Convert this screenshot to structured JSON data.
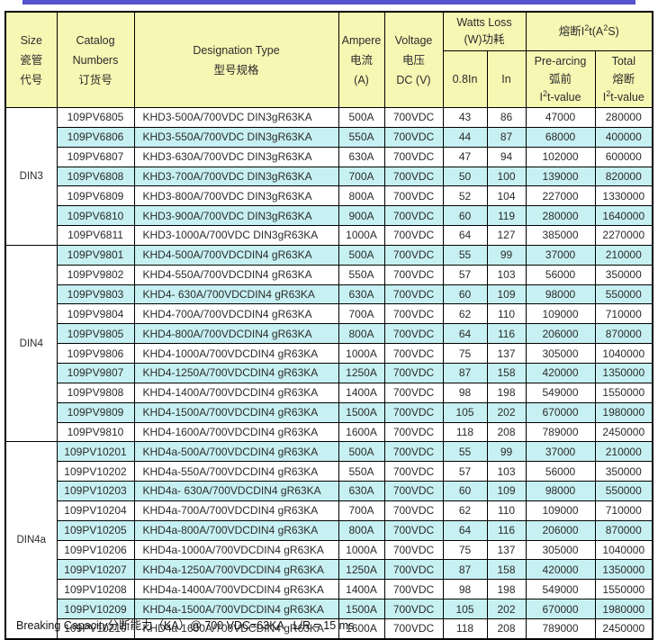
{
  "colors": {
    "top_bar": "#5353cf",
    "header_bg": "#f7f7b4",
    "stripe_bg": "#c7f0f2",
    "border": "#000000"
  },
  "columns": {
    "size": {
      "l1": "Size",
      "l2": "瓷管",
      "l3": "代号"
    },
    "catalog": {
      "l1": "Catalog",
      "l2": "Numbers",
      "l3": "订货号"
    },
    "designation": {
      "l1": "Designation Type",
      "l2": "型号规格"
    },
    "ampere": {
      "l1": "Ampere",
      "l2": "电流",
      "l3": "(A)"
    },
    "voltage": {
      "l1": "Voltage",
      "l2": "电压",
      "l3": "DC (V)"
    },
    "watts": {
      "l1": "Watts Loss",
      "l2": "(W)功耗",
      "sub1": "0.8In",
      "sub2": "In"
    },
    "i2t": {
      "t1": "熔断I",
      "sup1": "2",
      "t2": "t(A",
      "sup2": "2",
      "t3": "S)",
      "prearcing": {
        "l1": "Pre-arcing",
        "l2": "弧前",
        "v1": "I",
        "vsup": "2",
        "v2": "t-value"
      },
      "total": {
        "l1": "Total",
        "l2": "熔断",
        "v1": "I",
        "vsup": "2",
        "v2": "t-value"
      }
    }
  },
  "groups": [
    {
      "label": "DIN3",
      "rows": [
        [
          "109PV6805",
          "KHD3-500A/700VDC DIN3gR63KA",
          "500A",
          "700VDC",
          "43",
          "86",
          "47000",
          "280000"
        ],
        [
          "109PV6806",
          "KHD3-550A/700VDC DIN3gR63KA",
          "550A",
          "700VDC",
          "44",
          "87",
          "68000",
          "400000"
        ],
        [
          "109PV6807",
          "KHD3-630A/700VDC DIN3gR63KA",
          "630A",
          "700VDC",
          "47",
          "94",
          "102000",
          "600000"
        ],
        [
          "109PV6808",
          "KHD3-700A/700VDC DIN3gR63KA",
          "700A",
          "700VDC",
          "50",
          "100",
          "139000",
          "820000"
        ],
        [
          "109PV6809",
          "KHD3-800A/700VDC DIN3gR63KA",
          "800A",
          "700VDC",
          "52",
          "104",
          "227000",
          "1330000"
        ],
        [
          "109PV6810",
          "KHD3-900A/700VDC DIN3gR63KA",
          "900A",
          "700VDC",
          "60",
          "119",
          "280000",
          "1640000"
        ],
        [
          "109PV6811",
          "KHD3-1000A/700VDC DIN3gR63KA",
          "1000A",
          "700VDC",
          "64",
          "127",
          "385000",
          "2270000"
        ]
      ]
    },
    {
      "label": "DIN4",
      "rows": [
        [
          "109PV9801",
          "KHD4-500A/700VDCDIN4 gR63KA",
          "500A",
          "700VDC",
          "55",
          "99",
          "37000",
          "210000"
        ],
        [
          "109PV9802",
          "KHD4-550A/700VDCDIN4 gR63KA",
          "550A",
          "700VDC",
          "57",
          "103",
          "56000",
          "350000"
        ],
        [
          "109PV9803",
          "KHD4- 630A/700VDCDIN4 gR63KA",
          "630A",
          "700VDC",
          "60",
          "109",
          "98000",
          "550000"
        ],
        [
          "109PV9804",
          "KHD4-700A/700VDCDIN4 gR63KA",
          "700A",
          "700VDC",
          "62",
          "110",
          "109000",
          "710000"
        ],
        [
          "109PV9805",
          "KHD4-800A/700VDCDIN4 gR63KA",
          "800A",
          "700VDC",
          "64",
          "116",
          "206000",
          "870000"
        ],
        [
          "109PV9806",
          "KHD4-1000A/700VDCDIN4 gR63KA",
          "1000A",
          "700VDC",
          "75",
          "137",
          "305000",
          "1040000"
        ],
        [
          "109PV9807",
          "KHD4-1250A/700VDCDIN4 gR63KA",
          "1250A",
          "700VDC",
          "87",
          "158",
          "420000",
          "1350000"
        ],
        [
          "109PV9808",
          "KHD4-1400A/700VDCDIN4 gR63KA",
          "1400A",
          "700VDC",
          "98",
          "198",
          "549000",
          "1550000"
        ],
        [
          "109PV9809",
          "KHD4-1500A/700VDCDIN4 gR63KA",
          "1500A",
          "700VDC",
          "105",
          "202",
          "670000",
          "1980000"
        ],
        [
          "109PV9810",
          "KHD4-1600A/700VDCDIN4 gR63KA",
          "1600A",
          "700VDC",
          "118",
          "208",
          "789000",
          "2450000"
        ]
      ]
    },
    {
      "label": "DIN4a",
      "rows": [
        [
          "109PV10201",
          "KHD4a-500A/700VDCDIN4 gR63KA",
          "500A",
          "700VDC",
          "55",
          "99",
          "37000",
          "210000"
        ],
        [
          "109PV10202",
          "KHD4a-550A/700VDCDIN4 gR63KA",
          "550A",
          "700VDC",
          "57",
          "103",
          "56000",
          "350000"
        ],
        [
          "109PV10203",
          "KHD4a- 630A/700VDCDIN4 gR63KA",
          "630A",
          "700VDC",
          "60",
          "109",
          "98000",
          "550000"
        ],
        [
          "109PV10204",
          "KHD4a-700A/700VDCDIN4 gR63KA",
          "700A",
          "700VDC",
          "62",
          "110",
          "109000",
          "710000"
        ],
        [
          "109PV10205",
          "KHD4a-800A/700VDCDIN4 gR63KA",
          "800A",
          "700VDC",
          "64",
          "116",
          "206000",
          "870000"
        ],
        [
          "109PV10206",
          "KHD4a-1000A/700VDCDIN4 gR63KA",
          "1000A",
          "700VDC",
          "75",
          "137",
          "305000",
          "1040000"
        ],
        [
          "109PV10207",
          "KHD4a-1250A/700VDCDIN4 gR63KA",
          "1250A",
          "700VDC",
          "87",
          "158",
          "420000",
          "1350000"
        ],
        [
          "109PV10208",
          "KHD4a-1400A/700VDCDIN4 gR63KA",
          "1400A",
          "700VDC",
          "98",
          "198",
          "549000",
          "1550000"
        ],
        [
          "109PV10209",
          "KHD4a-1500A/700VDCDIN4 gR63KA",
          "1500A",
          "700VDC",
          "105",
          "202",
          "670000",
          "1980000"
        ],
        [
          "109PV10210",
          "KHD4a-1600A/700VDCDIN4 gR63KA",
          "1600A",
          "700VDC",
          "118",
          "208",
          "789000",
          "2450000"
        ]
      ]
    }
  ],
  "footer": {
    "text": "Breaking Capacity分断能力（KA）@ 700 VDC=63KA   L/R = 15 ms"
  }
}
